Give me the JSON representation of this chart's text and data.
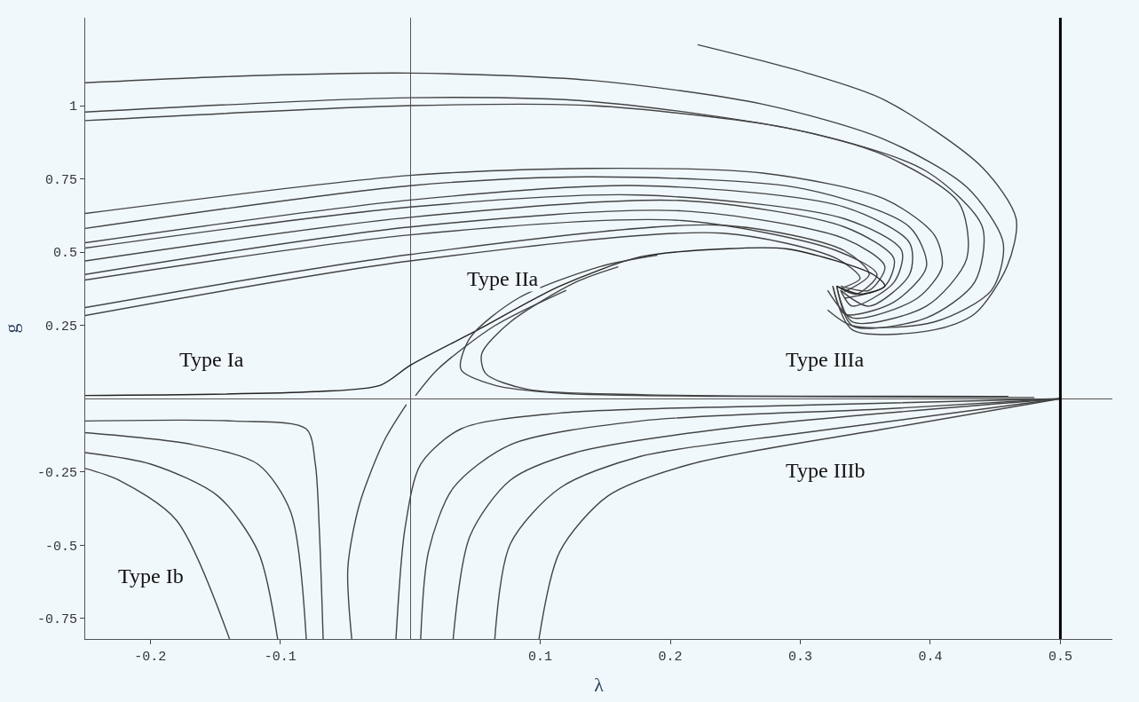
{
  "chart_data": {
    "type": "line",
    "xlabel": "λ",
    "ylabel": "g",
    "xlim": [
      -0.25,
      0.54
    ],
    "ylim": [
      -0.82,
      1.3
    ],
    "xticks": [
      -0.2,
      -0.1,
      0.1,
      0.2,
      0.3,
      0.4,
      0.5
    ],
    "yticks": [
      -0.75,
      -0.5,
      -0.25,
      0.25,
      0.5,
      0.75,
      1
    ],
    "grid": false,
    "marker": "none",
    "line_style": "solid",
    "ref_lines": [
      {
        "axis": "x",
        "value": 0.5,
        "label": null,
        "color": "#000000"
      }
    ],
    "annotations": [
      "Type Ia",
      "Type IIa",
      "Type IIIa",
      "Type IIIb",
      "Type Ib"
    ],
    "series": [
      {
        "color": "#444444",
        "x": [
          -0.25,
          -0.136,
          0,
          0.14,
          0.271,
          0.365,
          0.428,
          0.456,
          0.447,
          0.403,
          0.34,
          0.321
        ],
        "values": [
          1.078,
          1.1,
          1.111,
          1.086,
          1.005,
          0.884,
          0.722,
          0.532,
          0.37,
          0.262,
          0.249,
          0.303
        ]
      },
      {
        "color": "#444444",
        "x": [
          0.221,
          0.303,
          0.365,
          0.44,
          0.466,
          0.459,
          0.434,
          0.403,
          0.34,
          0.325
        ],
        "values": [
          1.208,
          1.114,
          1.019,
          0.789,
          0.614,
          0.451,
          0.289,
          0.235,
          0.235,
          0.384
        ]
      },
      {
        "color": "#444444",
        "x": [
          -0.25,
          0,
          0.14,
          0.303,
          0.397,
          0.44,
          0.434,
          0.397,
          0.34,
          0.328
        ],
        "values": [
          0.978,
          1.027,
          1.014,
          0.911,
          0.776,
          0.586,
          0.397,
          0.276,
          0.249,
          0.384
        ]
      },
      {
        "color": "#444444",
        "x": [
          -0.25,
          0,
          0.14,
          0.29,
          0.365,
          0.422,
          0.428,
          0.397,
          0.34,
          0.328
        ],
        "values": [
          0.949,
          1.0,
          1.0,
          0.924,
          0.83,
          0.668,
          0.478,
          0.316,
          0.262,
          0.384
        ]
      },
      {
        "color": "#444444",
        "x": [
          -0.25,
          0,
          0.14,
          0.271,
          0.365,
          0.403,
          0.409,
          0.39,
          0.34,
          0.321
        ],
        "values": [
          0.632,
          0.762,
          0.786,
          0.77,
          0.681,
          0.559,
          0.451,
          0.343,
          0.276,
          0.37
        ]
      },
      {
        "color": "#444444",
        "x": [
          -0.25,
          0,
          0.14,
          0.303,
          0.384,
          0.397,
          0.372,
          0.334,
          0.325
        ],
        "values": [
          0.581,
          0.727,
          0.757,
          0.716,
          0.586,
          0.451,
          0.33,
          0.289,
          0.384
        ]
      },
      {
        "color": "#444444",
        "x": [
          -0.25,
          0,
          0.177,
          0.334,
          0.384,
          0.384,
          0.353,
          0.331
        ],
        "values": [
          0.532,
          0.678,
          0.727,
          0.654,
          0.532,
          0.424,
          0.316,
          0.37
        ]
      },
      {
        "color": "#444444",
        "x": [
          -0.25,
          0,
          0.177,
          0.334,
          0.378,
          0.372,
          0.34,
          0.331
        ],
        "values": [
          0.514,
          0.654,
          0.695,
          0.614,
          0.505,
          0.397,
          0.316,
          0.37
        ]
      },
      {
        "color": "#444444",
        "x": [
          -0.25,
          0,
          0.209,
          0.334,
          0.372,
          0.365,
          0.334
        ],
        "values": [
          0.47,
          0.619,
          0.676,
          0.586,
          0.478,
          0.384,
          0.343
        ]
      },
      {
        "color": "#444444",
        "x": [
          -0.25,
          0,
          0.209,
          0.334,
          0.365,
          0.353,
          0.331
        ],
        "values": [
          0.424,
          0.586,
          0.641,
          0.546,
          0.451,
          0.37,
          0.384
        ]
      },
      {
        "color": "#444444",
        "x": [
          -0.25,
          0,
          0.209,
          0.328,
          0.359,
          0.343,
          0.328
        ],
        "values": [
          0.405,
          0.559,
          0.608,
          0.505,
          0.424,
          0.357,
          0.384
        ]
      },
      {
        "color": "#444444",
        "x": [
          -0.25,
          0,
          0.24,
          0.334,
          0.353,
          0.334
        ],
        "values": [
          0.311,
          0.492,
          0.592,
          0.505,
          0.424,
          0.365
        ]
      },
      {
        "color": "#444444",
        "x": [
          -0.25,
          0,
          0.24,
          0.328,
          0.346,
          0.331
        ],
        "values": [
          0.284,
          0.47,
          0.565,
          0.478,
          0.411,
          0.376
        ]
      },
      {
        "color": "#222222",
        "x": [
          -0.25,
          -0.073,
          -0.023,
          0,
          0.052,
          0.115,
          0.177,
          0.24,
          0.29,
          0.356,
          0.365,
          0.346,
          0.328
        ],
        "values": [
          0.011,
          0.024,
          0.046,
          0.114,
          0.235,
          0.384,
          0.484,
          0.511,
          0.511,
          0.424,
          0.384,
          0.357,
          0.384
        ]
      },
      {
        "color": "#444444",
        "x": [
          0.48,
          0.24,
          0.115,
          0.065,
          0.039,
          0.046,
          0.083,
          0.146,
          0.19
        ],
        "values": [
          0.004,
          0.008,
          0.019,
          0.046,
          0.1,
          0.208,
          0.343,
          0.451,
          0.49
        ]
      },
      {
        "color": "#444444",
        "x": [
          0.46,
          0.177,
          0.09,
          0.058,
          0.055,
          0.077,
          0.127,
          0.16
        ],
        "values": [
          0.008,
          0.014,
          0.032,
          0.086,
          0.154,
          0.262,
          0.397,
          0.45
        ]
      },
      {
        "color": "#444444",
        "x": [
          0.004,
          0.021,
          0.065,
          0.12
        ],
        "values": [
          0.01,
          0.1,
          0.249,
          0.37
        ]
      },
      {
        "color": "#444444",
        "x": [
          -0.003,
          -0.02,
          -0.039,
          -0.048,
          -0.045
        ],
        "values": [
          -0.02,
          -0.143,
          -0.359,
          -0.576,
          -0.82
        ]
      },
      {
        "color": "#444444",
        "x": [
          -0.25,
          -0.136,
          -0.08,
          -0.073,
          -0.07,
          -0.067
        ],
        "values": [
          -0.076,
          -0.076,
          -0.103,
          -0.224,
          -0.441,
          -0.82
        ]
      },
      {
        "color": "#444444",
        "x": [
          -0.25,
          -0.167,
          -0.117,
          -0.092,
          -0.08
        ],
        "values": [
          -0.116,
          -0.157,
          -0.224,
          -0.386,
          -0.82
        ]
      },
      {
        "color": "#444444",
        "x": [
          -0.25,
          -0.199,
          -0.148,
          -0.117,
          -0.102
        ],
        "values": [
          -0.184,
          -0.224,
          -0.332,
          -0.522,
          -0.82
        ]
      },
      {
        "color": "#444444",
        "x": [
          -0.25,
          -0.224,
          -0.18,
          -0.139
        ],
        "values": [
          -0.238,
          -0.278,
          -0.414,
          -0.82
        ]
      },
      {
        "color": "#444444",
        "x": [
          -0.011,
          -0.004,
          0.008,
          0.039,
          0.115,
          0.303,
          0.5
        ],
        "values": [
          -0.82,
          -0.441,
          -0.224,
          -0.103,
          -0.049,
          -0.022,
          0
        ]
      },
      {
        "color": "#444444",
        "x": [
          0.008,
          0.014,
          0.033,
          0.077,
          0.177,
          0.365,
          0.5
        ],
        "values": [
          -0.82,
          -0.522,
          -0.305,
          -0.157,
          -0.076,
          -0.035,
          0
        ]
      },
      {
        "color": "#444444",
        "x": [
          0.033,
          0.046,
          0.077,
          0.127,
          0.24,
          0.5
        ],
        "values": [
          -0.82,
          -0.468,
          -0.278,
          -0.184,
          -0.103,
          0
        ]
      },
      {
        "color": "#444444",
        "x": [
          0.065,
          0.077,
          0.115,
          0.177,
          0.303,
          0.5
        ],
        "values": [
          -0.82,
          -0.495,
          -0.305,
          -0.197,
          -0.116,
          0
        ]
      },
      {
        "color": "#444444",
        "x": [
          0.099,
          0.115,
          0.152,
          0.215,
          0.365,
          0.5
        ],
        "values": [
          -0.82,
          -0.522,
          -0.332,
          -0.224,
          -0.103,
          0
        ]
      }
    ]
  }
}
